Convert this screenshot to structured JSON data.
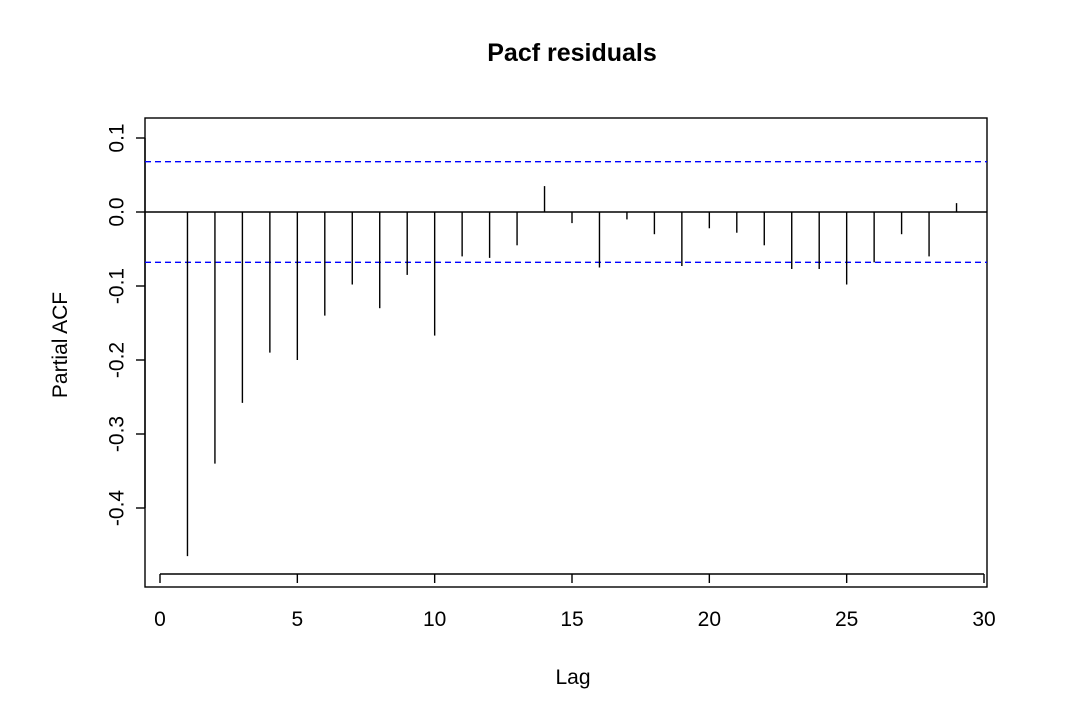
{
  "chart_data": {
    "type": "bar",
    "title": "Pacf residuals",
    "xlabel": "Lag",
    "ylabel": "Partial ACF",
    "xlim": [
      0,
      30
    ],
    "ylim": [
      -0.48,
      0.12
    ],
    "x_ticks": [
      0,
      5,
      10,
      15,
      20,
      25,
      30
    ],
    "x_tick_labels": [
      "0",
      "5",
      "10",
      "15",
      "20",
      "25",
      "30"
    ],
    "y_ticks": [
      -0.4,
      -0.3,
      -0.2,
      -0.1,
      0.0,
      0.1
    ],
    "y_tick_labels": [
      "-0.4",
      "-0.3",
      "-0.2",
      "-0.1",
      "0.0",
      "0.1"
    ],
    "confidence_bound": 0.068,
    "colors": {
      "spike": "#000000",
      "confidence": "#0000ff",
      "axis": "#000000"
    },
    "grid": false,
    "series": [
      {
        "lags": [
          1,
          2,
          3,
          4,
          5,
          6,
          7,
          8,
          9,
          10,
          11,
          12,
          13,
          14,
          15,
          16,
          17,
          18,
          19,
          20,
          21,
          22,
          23,
          24,
          25,
          26,
          27,
          28,
          29
        ],
        "values": [
          -0.465,
          -0.34,
          -0.258,
          -0.19,
          -0.2,
          -0.14,
          -0.098,
          -0.13,
          -0.085,
          -0.167,
          -0.06,
          -0.062,
          -0.045,
          0.035,
          -0.015,
          -0.075,
          -0.01,
          -0.03,
          -0.073,
          -0.022,
          -0.028,
          -0.045,
          -0.077,
          -0.077,
          -0.098,
          -0.068,
          -0.03,
          -0.06,
          0.012
        ]
      }
    ]
  }
}
